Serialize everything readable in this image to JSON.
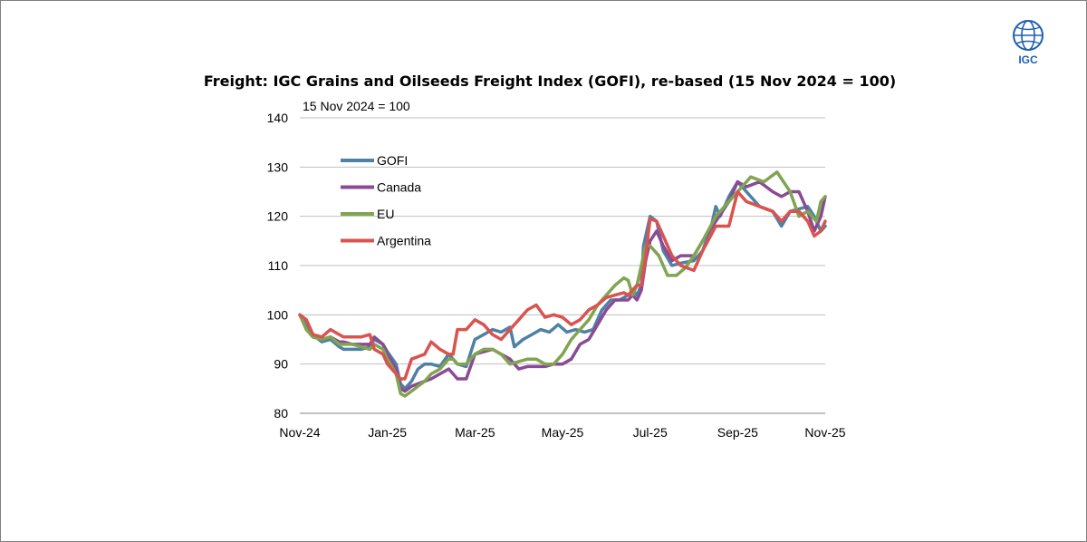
{
  "logo": {
    "text": "IGC",
    "color": "#1f5fb0"
  },
  "chart_data": {
    "type": "line",
    "title": "Freight: IGC Grains and Oilseeds Freight Index (GOFI), re-based (15 Nov 2024 = 100)",
    "unit_label": "15 Nov 2024 = 100",
    "ylim": [
      80,
      140
    ],
    "yticks": [
      80,
      90,
      100,
      110,
      120,
      130,
      140
    ],
    "xlim": [
      0,
      12
    ],
    "xticks": [
      {
        "pos": 0,
        "label": "Nov-24"
      },
      {
        "pos": 2,
        "label": "Jan-25"
      },
      {
        "pos": 4,
        "label": "Mar-25"
      },
      {
        "pos": 6,
        "label": "May-25"
      },
      {
        "pos": 8,
        "label": "Jul-25"
      },
      {
        "pos": 10,
        "label": "Sep-25"
      },
      {
        "pos": 12,
        "label": "Nov-25"
      }
    ],
    "x_unit": "months since 15 Nov 2024",
    "grid": "horizontal",
    "legend": "top-left",
    "series": [
      {
        "name": "GOFI",
        "color": "#4f81a5",
        "x": [
          0,
          0.15,
          0.3,
          0.5,
          0.7,
          0.9,
          1.0,
          1.2,
          1.4,
          1.6,
          1.7,
          1.9,
          2.0,
          2.2,
          2.3,
          2.4,
          2.55,
          2.7,
          2.85,
          3.0,
          3.2,
          3.4,
          3.5,
          3.6,
          3.8,
          4.0,
          4.2,
          4.4,
          4.6,
          4.8,
          4.9,
          5.1,
          5.3,
          5.5,
          5.7,
          5.9,
          6.1,
          6.3,
          6.5,
          6.7,
          6.9,
          7.1,
          7.3,
          7.5,
          7.6,
          7.7,
          7.8,
          7.85,
          8.0,
          8.15,
          8.3,
          8.5,
          8.7,
          9.0,
          9.2,
          9.4,
          9.5,
          9.6,
          9.8,
          10.0,
          10.2,
          10.5,
          10.8,
          11.0,
          11.2,
          11.4,
          11.6,
          11.75,
          11.9,
          12.0
        ],
        "values": [
          100,
          98,
          96,
          94.5,
          95,
          93.5,
          93,
          93,
          93,
          93.5,
          95,
          94,
          92.5,
          90,
          86,
          85,
          86.5,
          89,
          90,
          90,
          89.5,
          92,
          91,
          90,
          89.5,
          95,
          96,
          97,
          96.5,
          97.5,
          93.5,
          95,
          96,
          97,
          96.5,
          98,
          96.5,
          97,
          96.5,
          97,
          101,
          103,
          103,
          104,
          105,
          104,
          106,
          114,
          120,
          119,
          113,
          110,
          110.5,
          111,
          113,
          118,
          122,
          120,
          124,
          127,
          125,
          122,
          121,
          118,
          121,
          121.5,
          122,
          120,
          117,
          118
        ]
      },
      {
        "name": "Canada",
        "color": "#8b4a96",
        "x": [
          0,
          0.15,
          0.3,
          0.5,
          0.7,
          0.9,
          1.0,
          1.2,
          1.4,
          1.6,
          1.7,
          1.9,
          2.0,
          2.2,
          2.3,
          2.4,
          2.55,
          2.7,
          2.85,
          3.0,
          3.2,
          3.4,
          3.5,
          3.6,
          3.8,
          4.0,
          4.2,
          4.4,
          4.6,
          4.8,
          5.0,
          5.2,
          5.4,
          5.6,
          5.8,
          6.0,
          6.2,
          6.4,
          6.6,
          6.8,
          7.0,
          7.2,
          7.4,
          7.5,
          7.6,
          7.7,
          7.8,
          7.9,
          8.0,
          8.15,
          8.3,
          8.5,
          8.7,
          9.0,
          9.2,
          9.5,
          9.8,
          10.0,
          10.2,
          10.5,
          10.8,
          11.0,
          11.2,
          11.4,
          11.6,
          11.75,
          11.9,
          12.0
        ],
        "values": [
          100,
          97,
          95.5,
          95,
          95.5,
          94.5,
          94.5,
          94,
          94,
          94,
          95.5,
          94,
          92,
          89,
          85,
          84.5,
          85.5,
          86,
          86.5,
          87,
          88,
          89,
          88,
          87,
          87,
          92,
          92.5,
          93,
          92,
          91,
          89,
          89.5,
          89.5,
          89.5,
          90,
          90,
          91,
          94,
          95,
          98,
          101,
          103,
          103,
          103,
          104,
          103,
          105,
          111,
          115,
          117,
          114,
          111,
          112,
          112,
          115,
          119,
          123,
          127,
          126,
          127,
          125,
          124,
          125,
          125,
          121,
          117,
          120,
          124
        ]
      },
      {
        "name": "EU",
        "color": "#80a550",
        "x": [
          0,
          0.15,
          0.3,
          0.5,
          0.7,
          0.9,
          1.0,
          1.2,
          1.4,
          1.6,
          1.7,
          1.9,
          2.0,
          2.2,
          2.3,
          2.4,
          2.55,
          2.7,
          2.85,
          3.0,
          3.2,
          3.4,
          3.5,
          3.6,
          3.8,
          4.0,
          4.2,
          4.4,
          4.6,
          4.8,
          5.0,
          5.2,
          5.4,
          5.6,
          5.8,
          6.0,
          6.2,
          6.4,
          6.6,
          6.8,
          7.0,
          7.2,
          7.4,
          7.5,
          7.6,
          7.7,
          7.8,
          7.9,
          8.0,
          8.2,
          8.4,
          8.6,
          8.8,
          9.0,
          9.2,
          9.5,
          9.8,
          10.0,
          10.3,
          10.6,
          10.9,
          11.2,
          11.4,
          11.6,
          11.8,
          11.9,
          12.0
        ],
        "values": [
          100,
          97,
          95.5,
          95,
          95.5,
          94,
          94,
          94,
          93.5,
          93,
          94,
          93,
          91,
          88,
          84,
          83.5,
          84.5,
          85.5,
          86.5,
          88,
          89,
          91,
          91,
          90,
          90,
          92,
          93,
          93,
          92,
          90,
          90.5,
          91,
          91,
          90,
          90,
          92,
          95,
          97,
          99,
          102,
          104,
          106,
          107.5,
          107,
          104,
          106,
          110,
          114,
          114,
          112,
          108,
          108,
          109.5,
          112,
          115,
          120,
          123,
          125,
          128,
          127,
          129,
          125,
          120,
          121,
          119,
          123,
          124
        ]
      },
      {
        "name": "Argentina",
        "color": "#d9534f",
        "x": [
          0,
          0.15,
          0.3,
          0.5,
          0.7,
          0.9,
          1.0,
          1.2,
          1.4,
          1.6,
          1.7,
          1.9,
          2.0,
          2.2,
          2.3,
          2.4,
          2.55,
          2.7,
          2.85,
          3.0,
          3.2,
          3.4,
          3.5,
          3.6,
          3.8,
          4.0,
          4.2,
          4.4,
          4.6,
          4.8,
          5.0,
          5.2,
          5.4,
          5.6,
          5.8,
          6.0,
          6.2,
          6.4,
          6.6,
          6.8,
          7.0,
          7.2,
          7.4,
          7.5,
          7.6,
          7.7,
          7.8,
          7.9,
          8.0,
          8.15,
          8.3,
          8.5,
          8.7,
          9.0,
          9.2,
          9.5,
          9.8,
          10.0,
          10.2,
          10.5,
          10.8,
          11.0,
          11.2,
          11.4,
          11.6,
          11.75,
          11.9,
          12.0
        ],
        "values": [
          100,
          99,
          96,
          95.5,
          97,
          96,
          95.5,
          95.5,
          95.5,
          96,
          93,
          92,
          90,
          88,
          87,
          87,
          91,
          91.5,
          92,
          94.5,
          93,
          92,
          92,
          97,
          97,
          99,
          98,
          96,
          95,
          97,
          99,
          101,
          102,
          99.5,
          100,
          99.5,
          98,
          99,
          101,
          102,
          103.5,
          104,
          104.5,
          104,
          105,
          106,
          106,
          112,
          119.5,
          119,
          116,
          112,
          110,
          109,
          113,
          118,
          118,
          125,
          123,
          122,
          121,
          119,
          121,
          121,
          119,
          116,
          117,
          119
        ]
      }
    ]
  }
}
